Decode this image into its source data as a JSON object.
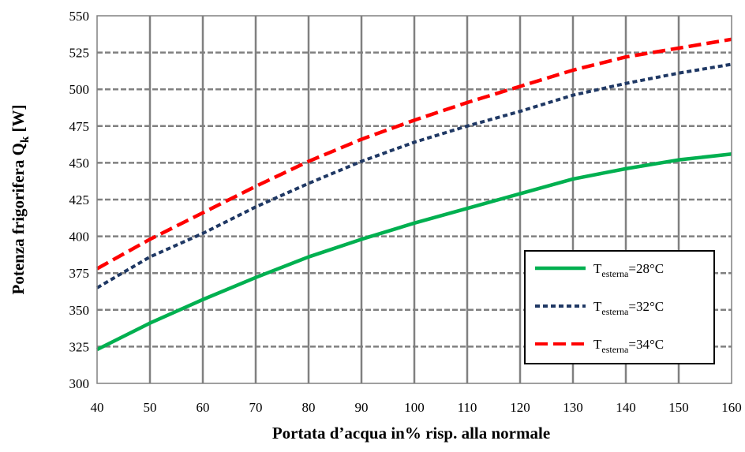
{
  "chart_data": {
    "type": "line",
    "title": "",
    "xlabel": "Portata d’acqua in% risp. alla normale",
    "ylabel_main": "Potenza frigorifera Q",
    "ylabel_sub": "k",
    "ylabel_unit": " [W]",
    "xlim": [
      40,
      160
    ],
    "ylim": [
      300,
      550
    ],
    "xticks": [
      40,
      50,
      60,
      70,
      80,
      90,
      100,
      110,
      120,
      130,
      140,
      150,
      160
    ],
    "yticks": [
      300,
      325,
      350,
      375,
      400,
      425,
      450,
      475,
      500,
      525,
      550
    ],
    "grid": true,
    "legend_position": "lower-right",
    "series": [
      {
        "label_main": "T",
        "label_sub": "esterna",
        "label_rest": "=28°C",
        "color": "#00b050",
        "style": "solid",
        "x": [
          40,
          50,
          60,
          70,
          80,
          90,
          100,
          110,
          120,
          130,
          140,
          150,
          160
        ],
        "y": [
          323,
          341,
          357,
          372,
          386,
          398,
          409,
          419,
          429,
          439,
          446,
          452,
          456
        ]
      },
      {
        "label_main": "T",
        "label_sub": "esterna",
        "label_rest": "=32°C",
        "color": "#1f3864",
        "style": "dotted",
        "x": [
          40,
          50,
          60,
          70,
          80,
          90,
          100,
          110,
          120,
          130,
          140,
          150,
          160
        ],
        "y": [
          365,
          386,
          402,
          420,
          436,
          451,
          464,
          475,
          485,
          496,
          504,
          511,
          517
        ]
      },
      {
        "label_main": "T",
        "label_sub": "esterna",
        "label_rest": "=34°C",
        "color": "#ff0000",
        "style": "dashed",
        "x": [
          40,
          50,
          60,
          70,
          80,
          90,
          100,
          110,
          120,
          130,
          140,
          150,
          160
        ],
        "y": [
          378,
          398,
          416,
          434,
          451,
          466,
          479,
          491,
          502,
          513,
          522,
          528,
          534
        ]
      }
    ]
  }
}
